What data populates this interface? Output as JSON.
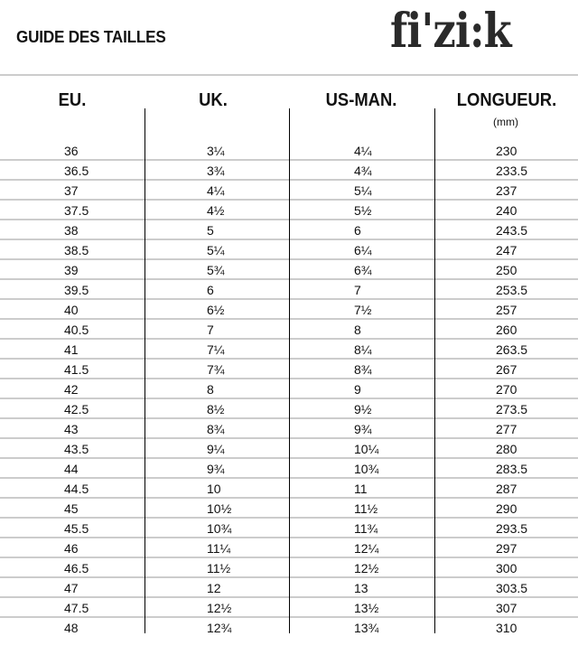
{
  "header": {
    "title": "GUIDE DES TAILLES",
    "logo_text": "fi'zi:k"
  },
  "table": {
    "columns": [
      "EU.",
      "UK.",
      "US-MAN.",
      "LONGUEUR."
    ],
    "length_unit": "(mm)",
    "rows": [
      [
        "36",
        "3¼",
        "4¼",
        "230"
      ],
      [
        "36.5",
        "3¾",
        "4¾",
        "233.5"
      ],
      [
        "37",
        "4¼",
        "5¼",
        "237"
      ],
      [
        "37.5",
        "4½",
        "5½",
        "240"
      ],
      [
        "38",
        "5",
        "6",
        "243.5"
      ],
      [
        "38.5",
        "5¼",
        "6¼",
        "247"
      ],
      [
        "39",
        "5¾",
        "6¾",
        "250"
      ],
      [
        "39.5",
        "6",
        "7",
        "253.5"
      ],
      [
        "40",
        "6½",
        "7½",
        "257"
      ],
      [
        "40.5",
        "7",
        "8",
        "260"
      ],
      [
        "41",
        "7¼",
        "8¼",
        "263.5"
      ],
      [
        "41.5",
        "7¾",
        "8¾",
        "267"
      ],
      [
        "42",
        "8",
        "9",
        "270"
      ],
      [
        "42.5",
        "8½",
        "9½",
        "273.5"
      ],
      [
        "43",
        "8¾",
        "9¾",
        "277"
      ],
      [
        "43.5",
        "9¼",
        "10¼",
        "280"
      ],
      [
        "44",
        "9¾",
        "10¾",
        "283.5"
      ],
      [
        "44.5",
        "10",
        "11",
        "287"
      ],
      [
        "45",
        "10½",
        "11½",
        "290"
      ],
      [
        "45.5",
        "10¾",
        "11¾",
        "293.5"
      ],
      [
        "46",
        "11¼",
        "12¼",
        "297"
      ],
      [
        "46.5",
        "11½",
        "12½",
        "300"
      ],
      [
        "47",
        "12",
        "13",
        "303.5"
      ],
      [
        "47.5",
        "12½",
        "13½",
        "307"
      ],
      [
        "48",
        "12¾",
        "13¾",
        "310"
      ]
    ]
  }
}
